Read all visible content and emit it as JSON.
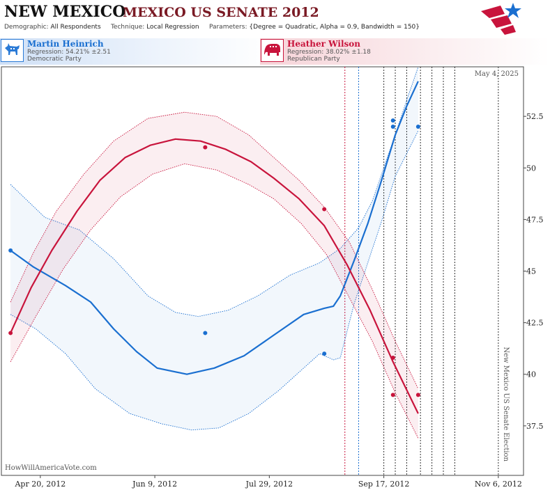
{
  "header": {
    "state": "NEW MEXICO",
    "race": "MEXICO US SENATE 2012",
    "demographic_label": "Demographic:",
    "demographic_value": "All Respondents",
    "technique_label": "Technique:",
    "technique_value": "Local Regression",
    "parameters_label": "Parameters:",
    "parameters_value": "{Degree = Quadratic, Alpha = 0.9, Bandwidth = 150}"
  },
  "candidates": [
    {
      "name": "Martin Heinrich",
      "regression": "Regression: 54.21% ±2.51",
      "party": "Democratic Party",
      "color": "#1a6fd0",
      "icon": "donkey-icon"
    },
    {
      "name": "Heather Wilson",
      "regression": "Regression: 38.02% ±1.18",
      "party": "Republican Party",
      "color": "#c8143c",
      "icon": "elephant-icon"
    }
  ],
  "footer": {
    "credit": "HowWillAmericaVote.com"
  },
  "chart_data": {
    "type": "line",
    "date_label": "May 4, 2025",
    "election_label": "New Mexico US Senate Election",
    "x_tick_labels": [
      "Apr 20, 2012",
      "Jun 9, 2012",
      "Jul 29, 2012",
      "Sep 17, 2012",
      "Nov 6, 2012"
    ],
    "x_ticks": [
      "2012-04-20",
      "2012-06-09",
      "2012-07-29",
      "2012-09-17",
      "2012-11-06"
    ],
    "y_ticks": [
      37.5,
      40,
      42.5,
      45,
      47.5,
      50,
      52.5
    ],
    "ylim": [
      35.1,
      54.9
    ],
    "xlim": [
      "2012-04-03",
      "2012-11-17"
    ],
    "election_date": "2012-11-06",
    "vertical_marker_dates": {
      "red": "2012-08-31",
      "blue": "2012-09-06",
      "gray": [
        "2012-09-17",
        "2012-09-22",
        "2012-09-27",
        "2012-10-03",
        "2012-10-08",
        "2012-10-13",
        "2012-10-18"
      ]
    },
    "series": [
      {
        "name": "Martin Heinrich",
        "color": "#1a6fd0",
        "points": [
          {
            "x": "2012-04-07",
            "y": 46.0
          },
          {
            "x": "2012-07-01",
            "y": 42.0
          },
          {
            "x": "2012-08-22",
            "y": 41.0
          },
          {
            "x": "2012-09-21",
            "y": 52.3
          },
          {
            "x": "2012-09-21",
            "y": 52.0
          },
          {
            "x": "2012-10-02",
            "y": 52.0
          }
        ],
        "curve": [
          {
            "x": "2012-04-07",
            "y": 46.0
          },
          {
            "x": "2012-04-17",
            "y": 45.2
          },
          {
            "x": "2012-05-01",
            "y": 44.3
          },
          {
            "x": "2012-05-12",
            "y": 43.5
          },
          {
            "x": "2012-05-22",
            "y": 42.2
          },
          {
            "x": "2012-06-01",
            "y": 41.1
          },
          {
            "x": "2012-06-10",
            "y": 40.3
          },
          {
            "x": "2012-06-23",
            "y": 40.0
          },
          {
            "x": "2012-07-05",
            "y": 40.3
          },
          {
            "x": "2012-07-18",
            "y": 40.9
          },
          {
            "x": "2012-07-31",
            "y": 41.9
          },
          {
            "x": "2012-08-13",
            "y": 42.9
          },
          {
            "x": "2012-08-22",
            "y": 43.2
          },
          {
            "x": "2012-08-26",
            "y": 43.3
          },
          {
            "x": "2012-08-29",
            "y": 43.8
          },
          {
            "x": "2012-09-04",
            "y": 45.5
          },
          {
            "x": "2012-09-10",
            "y": 47.3
          },
          {
            "x": "2012-09-16",
            "y": 49.4
          },
          {
            "x": "2012-09-22",
            "y": 51.6
          },
          {
            "x": "2012-09-27",
            "y": 53.0
          },
          {
            "x": "2012-10-02",
            "y": 54.2
          }
        ],
        "band_upper": [
          {
            "x": "2012-04-07",
            "y": 49.2
          },
          {
            "x": "2012-04-22",
            "y": 47.6
          },
          {
            "x": "2012-05-07",
            "y": 47.0
          },
          {
            "x": "2012-05-22",
            "y": 45.6
          },
          {
            "x": "2012-06-06",
            "y": 43.8
          },
          {
            "x": "2012-06-18",
            "y": 43.0
          },
          {
            "x": "2012-06-28",
            "y": 42.8
          },
          {
            "x": "2012-07-11",
            "y": 43.1
          },
          {
            "x": "2012-07-24",
            "y": 43.8
          },
          {
            "x": "2012-08-07",
            "y": 44.8
          },
          {
            "x": "2012-08-20",
            "y": 45.4
          },
          {
            "x": "2012-08-29",
            "y": 46.1
          },
          {
            "x": "2012-09-06",
            "y": 47.1
          },
          {
            "x": "2012-09-12",
            "y": 48.4
          },
          {
            "x": "2012-09-21",
            "y": 51.3
          },
          {
            "x": "2012-09-28",
            "y": 53.6
          },
          {
            "x": "2012-10-02",
            "y": 54.9
          }
        ],
        "band_lower": [
          {
            "x": "2012-04-07",
            "y": 42.9
          },
          {
            "x": "2012-04-18",
            "y": 42.2
          },
          {
            "x": "2012-05-01",
            "y": 41.0
          },
          {
            "x": "2012-05-14",
            "y": 39.3
          },
          {
            "x": "2012-05-29",
            "y": 38.1
          },
          {
            "x": "2012-06-12",
            "y": 37.6
          },
          {
            "x": "2012-06-25",
            "y": 37.3
          },
          {
            "x": "2012-07-07",
            "y": 37.4
          },
          {
            "x": "2012-07-20",
            "y": 38.1
          },
          {
            "x": "2012-08-02",
            "y": 39.2
          },
          {
            "x": "2012-08-13",
            "y": 40.3
          },
          {
            "x": "2012-08-20",
            "y": 41.0
          },
          {
            "x": "2012-08-26",
            "y": 40.7
          },
          {
            "x": "2012-08-29",
            "y": 40.8
          },
          {
            "x": "2012-09-04",
            "y": 43.4
          },
          {
            "x": "2012-09-10",
            "y": 45.4
          },
          {
            "x": "2012-09-16",
            "y": 47.4
          },
          {
            "x": "2012-09-22",
            "y": 49.6
          },
          {
            "x": "2012-10-02",
            "y": 51.8
          }
        ]
      },
      {
        "name": "Heather Wilson",
        "color": "#c8143c",
        "points": [
          {
            "x": "2012-04-07",
            "y": 42.0
          },
          {
            "x": "2012-07-01",
            "y": 51.0
          },
          {
            "x": "2012-08-22",
            "y": 48.0
          },
          {
            "x": "2012-09-21",
            "y": 40.8
          },
          {
            "x": "2012-09-21",
            "y": 39.0
          },
          {
            "x": "2012-10-02",
            "y": 39.0
          }
        ],
        "curve": [
          {
            "x": "2012-04-07",
            "y": 42.0
          },
          {
            "x": "2012-04-16",
            "y": 44.2
          },
          {
            "x": "2012-04-25",
            "y": 46.0
          },
          {
            "x": "2012-05-06",
            "y": 47.9
          },
          {
            "x": "2012-05-16",
            "y": 49.4
          },
          {
            "x": "2012-05-27",
            "y": 50.5
          },
          {
            "x": "2012-06-07",
            "y": 51.1
          },
          {
            "x": "2012-06-18",
            "y": 51.4
          },
          {
            "x": "2012-06-29",
            "y": 51.3
          },
          {
            "x": "2012-07-10",
            "y": 50.9
          },
          {
            "x": "2012-07-21",
            "y": 50.3
          },
          {
            "x": "2012-07-31",
            "y": 49.5
          },
          {
            "x": "2012-08-11",
            "y": 48.5
          },
          {
            "x": "2012-08-22",
            "y": 47.2
          },
          {
            "x": "2012-09-01",
            "y": 45.3
          },
          {
            "x": "2012-09-11",
            "y": 43.1
          },
          {
            "x": "2012-09-21",
            "y": 40.6
          },
          {
            "x": "2012-10-02",
            "y": 38.1
          }
        ],
        "band_upper": [
          {
            "x": "2012-04-07",
            "y": 43.5
          },
          {
            "x": "2012-04-17",
            "y": 45.9
          },
          {
            "x": "2012-04-27",
            "y": 47.9
          },
          {
            "x": "2012-05-09",
            "y": 49.7
          },
          {
            "x": "2012-05-22",
            "y": 51.3
          },
          {
            "x": "2012-06-06",
            "y": 52.4
          },
          {
            "x": "2012-06-22",
            "y": 52.7
          },
          {
            "x": "2012-07-06",
            "y": 52.5
          },
          {
            "x": "2012-07-20",
            "y": 51.6
          },
          {
            "x": "2012-07-31",
            "y": 50.5
          },
          {
            "x": "2012-08-11",
            "y": 49.4
          },
          {
            "x": "2012-08-22",
            "y": 48.1
          },
          {
            "x": "2012-09-02",
            "y": 46.4
          },
          {
            "x": "2012-09-12",
            "y": 44.1
          },
          {
            "x": "2012-09-22",
            "y": 41.6
          },
          {
            "x": "2012-10-02",
            "y": 39.3
          }
        ],
        "band_lower": [
          {
            "x": "2012-04-07",
            "y": 40.6
          },
          {
            "x": "2012-04-18",
            "y": 42.8
          },
          {
            "x": "2012-04-30",
            "y": 45.1
          },
          {
            "x": "2012-05-12",
            "y": 47.0
          },
          {
            "x": "2012-05-25",
            "y": 48.6
          },
          {
            "x": "2012-06-08",
            "y": 49.7
          },
          {
            "x": "2012-06-22",
            "y": 50.2
          },
          {
            "x": "2012-07-06",
            "y": 49.9
          },
          {
            "x": "2012-07-20",
            "y": 49.2
          },
          {
            "x": "2012-07-31",
            "y": 48.5
          },
          {
            "x": "2012-08-12",
            "y": 47.3
          },
          {
            "x": "2012-08-23",
            "y": 45.8
          },
          {
            "x": "2012-09-02",
            "y": 43.7
          },
          {
            "x": "2012-09-12",
            "y": 41.6
          },
          {
            "x": "2012-09-22",
            "y": 39.1
          },
          {
            "x": "2012-10-02",
            "y": 36.9
          }
        ]
      }
    ]
  }
}
